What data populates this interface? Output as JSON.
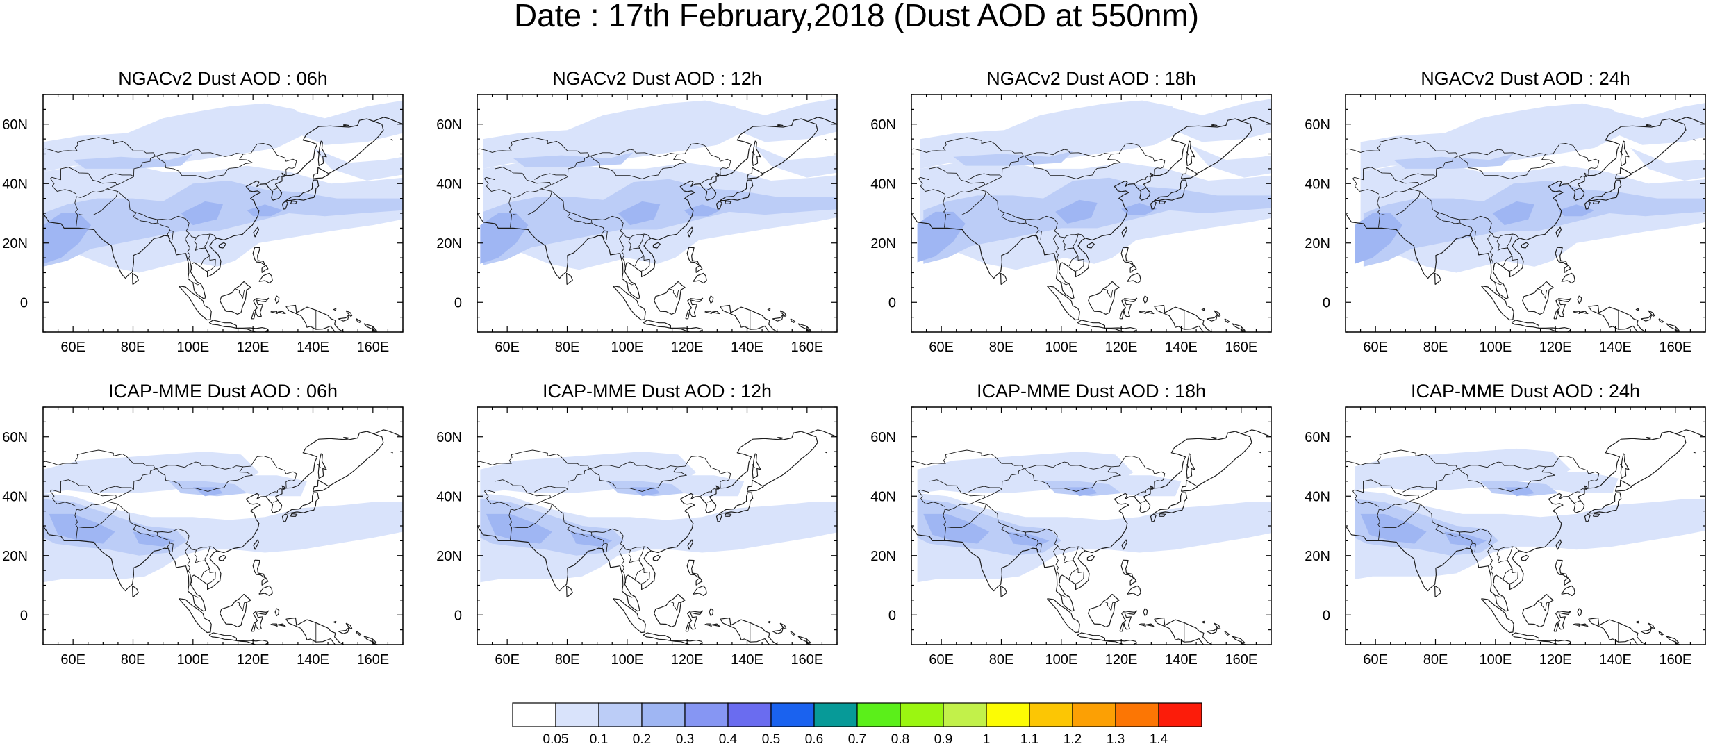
{
  "figure": {
    "title": "Date : 17th February,2018 (Dust AOD at 550nm)"
  },
  "axes": {
    "lon_ticks": [
      "60E",
      "80E",
      "100E",
      "120E",
      "140E",
      "160E"
    ],
    "lat_ticks": [
      "60N",
      "40N",
      "20N",
      "0"
    ],
    "lon_values": [
      60,
      80,
      100,
      120,
      140,
      160
    ],
    "lat_values": [
      60,
      40,
      20,
      0
    ],
    "lon_range": [
      50,
      170
    ],
    "lat_range": [
      -10,
      70
    ]
  },
  "panels": [
    {
      "title": "NGACv2 Dust AOD : 06h",
      "model": "NGACv2",
      "lead": "06h"
    },
    {
      "title": "NGACv2 Dust AOD : 12h",
      "model": "NGACv2",
      "lead": "12h"
    },
    {
      "title": "NGACv2 Dust AOD : 18h",
      "model": "NGACv2",
      "lead": "18h"
    },
    {
      "title": "NGACv2 Dust AOD : 24h",
      "model": "NGACv2",
      "lead": "24h"
    },
    {
      "title": "ICAP-MME Dust AOD : 06h",
      "model": "ICAP-MME",
      "lead": "06h"
    },
    {
      "title": "ICAP-MME Dust AOD : 12h",
      "model": "ICAP-MME",
      "lead": "12h"
    },
    {
      "title": "ICAP-MME Dust AOD : 18h",
      "model": "ICAP-MME",
      "lead": "18h"
    },
    {
      "title": "ICAP-MME Dust AOD : 24h",
      "model": "ICAP-MME",
      "lead": "24h"
    }
  ],
  "colorbar": {
    "labels": [
      "0.05",
      "0.1",
      "0.2",
      "0.3",
      "0.4",
      "0.5",
      "0.6",
      "0.7",
      "0.8",
      "0.9",
      "1",
      "1.1",
      "1.2",
      "1.3",
      "1.4"
    ],
    "colors": [
      "#ffffff",
      "#d9e3fb",
      "#bccdf7",
      "#9fb6f3",
      "#8696f3",
      "#6a6cf0",
      "#1a62ef",
      "#079a98",
      "#5bef1a",
      "#9bf611",
      "#c2f14a",
      "#fcfc04",
      "#fcc604",
      "#fca004",
      "#fc7604",
      "#fc1c0a"
    ]
  },
  "map_colors": {
    "coast": "#1c1c1c",
    "light": "#d9e3fb",
    "medium": "#bccdf7",
    "strong": "#9fb6f3"
  }
}
